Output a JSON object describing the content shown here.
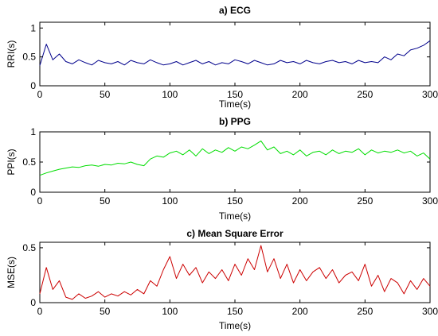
{
  "chart_data": [
    {
      "type": "line",
      "title": "a)  ECG",
      "xlabel": "Time(s)",
      "ylabel": "RRI(s)",
      "xlim": [
        0,
        300
      ],
      "ylim": [
        0,
        1.1
      ],
      "xticks": [
        0,
        50,
        100,
        150,
        200,
        250,
        300
      ],
      "yticks": [
        0,
        0.5,
        1
      ],
      "ytick_labels": [
        "0",
        "0.5",
        "1"
      ],
      "grid": false,
      "series": [
        {
          "color": "#00008b",
          "x": [
            0,
            5,
            10,
            15,
            20,
            25,
            30,
            35,
            40,
            45,
            50,
            55,
            60,
            65,
            70,
            75,
            80,
            85,
            90,
            95,
            100,
            105,
            110,
            115,
            120,
            125,
            130,
            135,
            140,
            145,
            150,
            155,
            160,
            165,
            170,
            175,
            180,
            185,
            190,
            195,
            200,
            205,
            210,
            215,
            220,
            225,
            230,
            235,
            240,
            245,
            250,
            255,
            260,
            265,
            270,
            275,
            280,
            285,
            290,
            295,
            300
          ],
          "y": [
            0.35,
            0.72,
            0.45,
            0.55,
            0.42,
            0.38,
            0.45,
            0.4,
            0.36,
            0.44,
            0.4,
            0.38,
            0.42,
            0.36,
            0.44,
            0.4,
            0.38,
            0.45,
            0.4,
            0.36,
            0.38,
            0.42,
            0.36,
            0.4,
            0.44,
            0.38,
            0.42,
            0.36,
            0.4,
            0.38,
            0.45,
            0.42,
            0.38,
            0.44,
            0.4,
            0.36,
            0.38,
            0.44,
            0.4,
            0.42,
            0.38,
            0.44,
            0.4,
            0.38,
            0.42,
            0.44,
            0.4,
            0.42,
            0.38,
            0.44,
            0.4,
            0.42,
            0.4,
            0.5,
            0.45,
            0.55,
            0.52,
            0.62,
            0.65,
            0.7,
            0.78
          ]
        }
      ]
    },
    {
      "type": "line",
      "title": "b)  PPG",
      "xlabel": "Time(s)",
      "ylabel": "PPI(s)",
      "xlim": [
        0,
        300
      ],
      "ylim": [
        0,
        1
      ],
      "xticks": [
        0,
        50,
        100,
        150,
        200,
        250,
        300
      ],
      "yticks": [
        0,
        0.5,
        1
      ],
      "ytick_labels": [
        "0",
        "0.5",
        "1"
      ],
      "grid": false,
      "series": [
        {
          "color": "#00dd00",
          "x": [
            0,
            5,
            10,
            15,
            20,
            25,
            30,
            35,
            40,
            45,
            50,
            55,
            60,
            65,
            70,
            75,
            80,
            85,
            90,
            95,
            100,
            105,
            110,
            115,
            120,
            125,
            130,
            135,
            140,
            145,
            150,
            155,
            160,
            165,
            170,
            175,
            180,
            185,
            190,
            195,
            200,
            205,
            210,
            215,
            220,
            225,
            230,
            235,
            240,
            245,
            250,
            255,
            260,
            265,
            270,
            275,
            280,
            285,
            290,
            295,
            300
          ],
          "y": [
            0.28,
            0.32,
            0.35,
            0.38,
            0.4,
            0.42,
            0.41,
            0.44,
            0.45,
            0.43,
            0.46,
            0.45,
            0.48,
            0.47,
            0.5,
            0.46,
            0.44,
            0.55,
            0.6,
            0.58,
            0.65,
            0.68,
            0.62,
            0.7,
            0.6,
            0.72,
            0.64,
            0.7,
            0.66,
            0.74,
            0.68,
            0.75,
            0.72,
            0.78,
            0.85,
            0.7,
            0.75,
            0.64,
            0.68,
            0.62,
            0.7,
            0.6,
            0.66,
            0.68,
            0.62,
            0.7,
            0.64,
            0.68,
            0.66,
            0.72,
            0.62,
            0.7,
            0.65,
            0.68,
            0.66,
            0.7,
            0.65,
            0.68,
            0.6,
            0.65,
            0.55
          ]
        }
      ]
    },
    {
      "type": "line",
      "title": "c)  Mean Square Error",
      "xlabel": "Time(s)",
      "ylabel": "MSE(s)",
      "xlim": [
        0,
        300
      ],
      "ylim": [
        0,
        0.55
      ],
      "xticks": [
        0,
        50,
        100,
        150,
        200,
        250,
        300
      ],
      "yticks": [
        0,
        0.5
      ],
      "ytick_labels": [
        "0",
        "0.5"
      ],
      "grid": false,
      "series": [
        {
          "color": "#cc0000",
          "x": [
            0,
            5,
            10,
            15,
            20,
            25,
            30,
            35,
            40,
            45,
            50,
            55,
            60,
            65,
            70,
            75,
            80,
            85,
            90,
            95,
            100,
            105,
            110,
            115,
            120,
            125,
            130,
            135,
            140,
            145,
            150,
            155,
            160,
            165,
            170,
            175,
            180,
            185,
            190,
            195,
            200,
            205,
            210,
            215,
            220,
            225,
            230,
            235,
            240,
            245,
            250,
            255,
            260,
            265,
            270,
            275,
            280,
            285,
            290,
            295,
            300
          ],
          "y": [
            0.08,
            0.32,
            0.12,
            0.2,
            0.05,
            0.03,
            0.08,
            0.04,
            0.06,
            0.1,
            0.05,
            0.08,
            0.06,
            0.1,
            0.07,
            0.12,
            0.08,
            0.2,
            0.15,
            0.3,
            0.42,
            0.22,
            0.35,
            0.25,
            0.32,
            0.18,
            0.28,
            0.22,
            0.3,
            0.2,
            0.35,
            0.25,
            0.4,
            0.3,
            0.52,
            0.28,
            0.4,
            0.22,
            0.35,
            0.18,
            0.3,
            0.2,
            0.28,
            0.32,
            0.22,
            0.3,
            0.18,
            0.25,
            0.28,
            0.2,
            0.35,
            0.15,
            0.25,
            0.1,
            0.22,
            0.18,
            0.08,
            0.2,
            0.12,
            0.22,
            0.15
          ]
        }
      ]
    }
  ]
}
